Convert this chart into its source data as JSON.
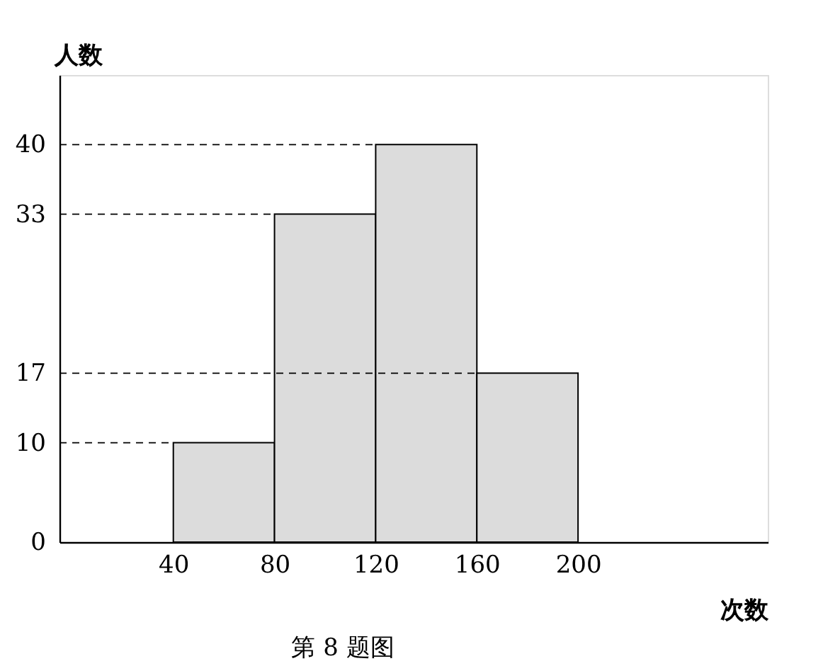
{
  "chart_data": {
    "type": "histogram",
    "bins": [
      40,
      80,
      120,
      160,
      200
    ],
    "values": [
      10,
      33,
      40,
      17
    ],
    "color": "#dcdcdc",
    "xlim": [
      -5,
      275
    ],
    "xticks": [
      40,
      80,
      120,
      160,
      200
    ],
    "ylim": [
      0,
      47
    ],
    "yticks": [
      0,
      10,
      17,
      33,
      40
    ],
    "xlabel": "次数",
    "ylabel": "人数",
    "ref_lines": [
      {
        "axis": "y",
        "value": 10,
        "line_style": "dashed"
      },
      {
        "axis": "y",
        "value": 17,
        "line_style": "dashed"
      },
      {
        "axis": "y",
        "value": 33,
        "line_style": "dashed"
      },
      {
        "axis": "y",
        "value": 40,
        "line_style": "dashed"
      }
    ],
    "annotations": [
      "第 8 题图"
    ]
  }
}
